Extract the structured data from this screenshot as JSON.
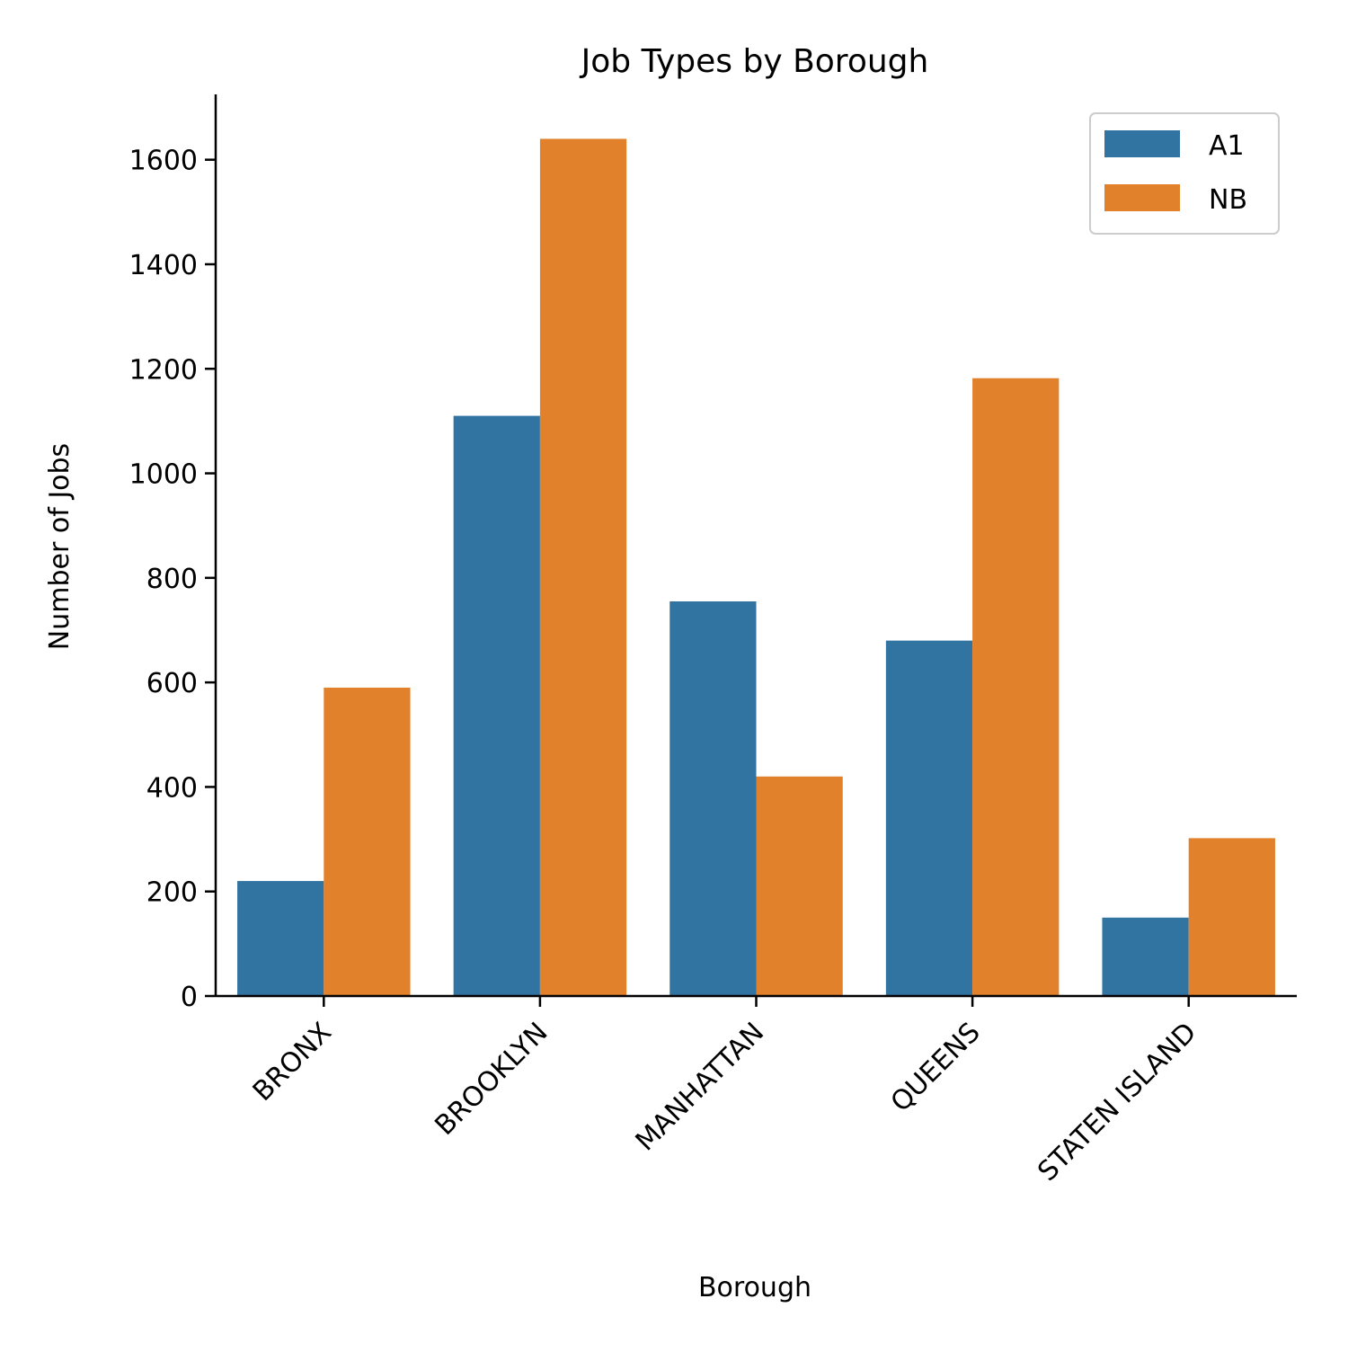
{
  "chart_data": {
    "type": "bar",
    "title": "Job Types by Borough",
    "xlabel": "Borough",
    "ylabel": "Number of Jobs",
    "categories": [
      "BRONX",
      "BROOKLYN",
      "MANHATTAN",
      "QUEENS",
      "STATEN ISLAND"
    ],
    "series": [
      {
        "name": "A1",
        "color": "#3274a1",
        "values": [
          220,
          1110,
          755,
          680,
          150
        ]
      },
      {
        "name": "NB",
        "color": "#e1812c",
        "values": [
          590,
          1640,
          420,
          1182,
          302
        ]
      }
    ],
    "ylim": [
      0,
      1725
    ],
    "yticks": [
      0,
      200,
      400,
      600,
      800,
      1000,
      1200,
      1400,
      1600
    ],
    "grid": false,
    "legend_position": "top-right"
  }
}
